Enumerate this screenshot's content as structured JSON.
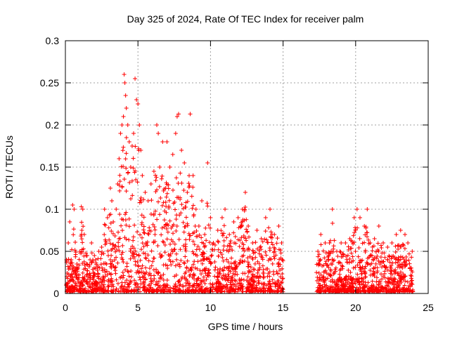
{
  "chart_data": {
    "type": "scatter",
    "title": "Day 325 of 2024, Rate Of TEC Index for receiver palm",
    "xlabel": "GPS time / hours",
    "ylabel": "ROTI / TECUs",
    "xlim": [
      0,
      25
    ],
    "ylim": [
      0,
      0.3
    ],
    "xticks": [
      0,
      5,
      10,
      15,
      20,
      25
    ],
    "xtick_labels": [
      "0",
      "5",
      "10",
      "15",
      "20",
      "25"
    ],
    "yticks": [
      0,
      0.05,
      0.1,
      0.15,
      0.2,
      0.25,
      0.3
    ],
    "ytick_labels": [
      "0",
      "0.05",
      "0.1",
      "0.15",
      "0.2",
      "0.25",
      "0.3"
    ],
    "grid": true,
    "marker": "+",
    "color": "#ff0000",
    "data_gaps_hours": [
      [
        15.0,
        17.3
      ]
    ],
    "series": [
      {
        "name": "ROTI",
        "points": [
          [
            0.1,
            0.02
          ],
          [
            0.2,
            0.06
          ],
          [
            0.3,
            0.085
          ],
          [
            0.4,
            0.04
          ],
          [
            0.5,
            0.105
          ],
          [
            0.6,
            0.1
          ],
          [
            0.8,
            0.035
          ],
          [
            1.0,
            0.05
          ],
          [
            1.1,
            0.103
          ],
          [
            1.2,
            0.1
          ],
          [
            1.3,
            0.07
          ],
          [
            1.5,
            0.045
          ],
          [
            1.7,
            0.04
          ],
          [
            1.8,
            0.06
          ],
          [
            2.0,
            0.045
          ],
          [
            2.3,
            0.05
          ],
          [
            2.5,
            0.055
          ],
          [
            2.7,
            0.1
          ],
          [
            2.9,
            0.09
          ],
          [
            3.1,
            0.125
          ],
          [
            3.2,
            0.11
          ],
          [
            3.3,
            0.085
          ],
          [
            3.5,
            0.1
          ],
          [
            3.6,
            0.13
          ],
          [
            3.7,
            0.16
          ],
          [
            3.8,
            0.19
          ],
          [
            3.9,
            0.2
          ],
          [
            4.0,
            0.21
          ],
          [
            4.05,
            0.26
          ],
          [
            4.1,
            0.25
          ],
          [
            4.15,
            0.235
          ],
          [
            4.2,
            0.22
          ],
          [
            4.3,
            0.2
          ],
          [
            4.4,
            0.18
          ],
          [
            4.5,
            0.15
          ],
          [
            4.6,
            0.175
          ],
          [
            4.7,
            0.19
          ],
          [
            4.8,
            0.255
          ],
          [
            4.9,
            0.23
          ],
          [
            5.0,
            0.225
          ],
          [
            5.1,
            0.2
          ],
          [
            5.2,
            0.17
          ],
          [
            5.3,
            0.14
          ],
          [
            5.5,
            0.12
          ],
          [
            5.7,
            0.11
          ],
          [
            5.9,
            0.13
          ],
          [
            6.1,
            0.145
          ],
          [
            6.3,
            0.2
          ],
          [
            6.4,
            0.19
          ],
          [
            6.5,
            0.15
          ],
          [
            6.7,
            0.18
          ],
          [
            6.9,
            0.125
          ],
          [
            7.0,
            0.18
          ],
          [
            7.2,
            0.15
          ],
          [
            7.4,
            0.165
          ],
          [
            7.6,
            0.19
          ],
          [
            7.7,
            0.21
          ],
          [
            7.8,
            0.213
          ],
          [
            8.0,
            0.17
          ],
          [
            8.2,
            0.155
          ],
          [
            8.4,
            0.12
          ],
          [
            8.6,
            0.213
          ],
          [
            8.8,
            0.14
          ],
          [
            9.0,
            0.1
          ],
          [
            9.2,
            0.08
          ],
          [
            9.4,
            0.11
          ],
          [
            9.6,
            0.07
          ],
          [
            9.8,
            0.155
          ],
          [
            10.0,
            0.09
          ],
          [
            10.2,
            0.06
          ],
          [
            10.5,
            0.075
          ],
          [
            10.8,
            0.09
          ],
          [
            11.0,
            0.1
          ],
          [
            11.3,
            0.07
          ],
          [
            11.6,
            0.085
          ],
          [
            11.9,
            0.09
          ],
          [
            12.2,
            0.1
          ],
          [
            12.4,
            0.12
          ],
          [
            12.6,
            0.08
          ],
          [
            12.9,
            0.06
          ],
          [
            13.2,
            0.075
          ],
          [
            13.5,
            0.065
          ],
          [
            13.8,
            0.09
          ],
          [
            14.1,
            0.1
          ],
          [
            14.4,
            0.07
          ],
          [
            14.7,
            0.08
          ],
          [
            14.9,
            0.06
          ],
          [
            17.4,
            0.05
          ],
          [
            17.6,
            0.07
          ],
          [
            17.9,
            0.06
          ],
          [
            18.2,
            0.06
          ],
          [
            18.4,
            0.1
          ],
          [
            18.7,
            0.05
          ],
          [
            19.0,
            0.06
          ],
          [
            19.3,
            0.06
          ],
          [
            19.6,
            0.065
          ],
          [
            19.9,
            0.09
          ],
          [
            20.1,
            0.1
          ],
          [
            20.3,
            0.09
          ],
          [
            20.6,
            0.08
          ],
          [
            20.8,
            0.1
          ],
          [
            21.0,
            0.06
          ],
          [
            21.3,
            0.065
          ],
          [
            21.6,
            0.08
          ],
          [
            21.9,
            0.06
          ],
          [
            22.2,
            0.055
          ],
          [
            22.5,
            0.06
          ],
          [
            22.8,
            0.07
          ],
          [
            23.1,
            0.075
          ],
          [
            23.4,
            0.07
          ],
          [
            23.6,
            0.06
          ],
          [
            23.9,
            0.05
          ]
        ]
      }
    ]
  }
}
